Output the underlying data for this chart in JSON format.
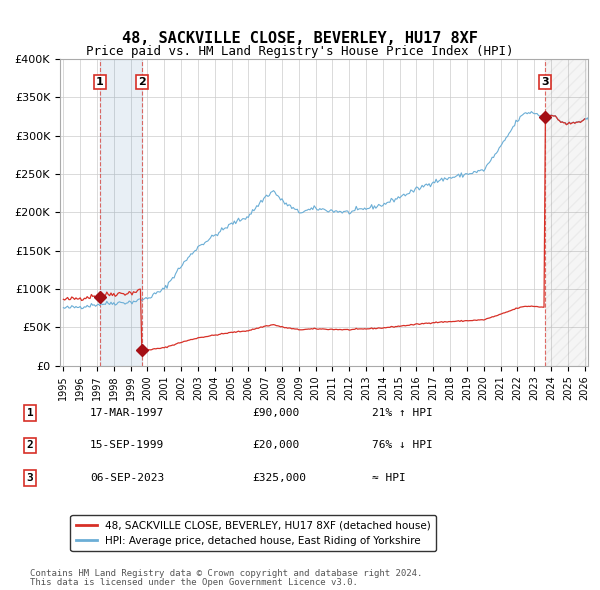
{
  "title": "48, SACKVILLE CLOSE, BEVERLEY, HU17 8XF",
  "subtitle": "Price paid vs. HM Land Registry's House Price Index (HPI)",
  "xlabel": "",
  "ylabel": "",
  "ylim": [
    0,
    400000
  ],
  "yticks": [
    0,
    50000,
    100000,
    150000,
    200000,
    250000,
    300000,
    350000,
    400000
  ],
  "ytick_labels": [
    "£0",
    "£50K",
    "£100K",
    "£150K",
    "£200K",
    "£250K",
    "£300K",
    "£350K",
    "£400K"
  ],
  "hpi_color": "#6baed6",
  "price_color": "#d73027",
  "marker_color": "#a50f15",
  "sale_dates": [
    "1997-03-17",
    "1999-09-15",
    "2023-09-06"
  ],
  "sale_prices": [
    90000,
    20000,
    325000
  ],
  "sale_labels": [
    "1",
    "2",
    "3"
  ],
  "legend_entries": [
    "48, SACKVILLE CLOSE, BEVERLEY, HU17 8XF (detached house)",
    "HPI: Average price, detached house, East Riding of Yorkshire"
  ],
  "table_rows": [
    [
      "1",
      "17-MAR-1997",
      "£90,000",
      "21% ↑ HPI"
    ],
    [
      "2",
      "15-SEP-1999",
      "£20,000",
      "76% ↓ HPI"
    ],
    [
      "3",
      "06-SEP-2023",
      "£325,000",
      "≈ HPI"
    ]
  ],
  "footnote1": "Contains HM Land Registry data © Crown copyright and database right 2024.",
  "footnote2": "This data is licensed under the Open Government Licence v3.0.",
  "background_color": "#ffffff",
  "plot_bg_color": "#ffffff",
  "grid_color": "#cccccc",
  "xstart_year": 1995,
  "xend_year": 2026
}
